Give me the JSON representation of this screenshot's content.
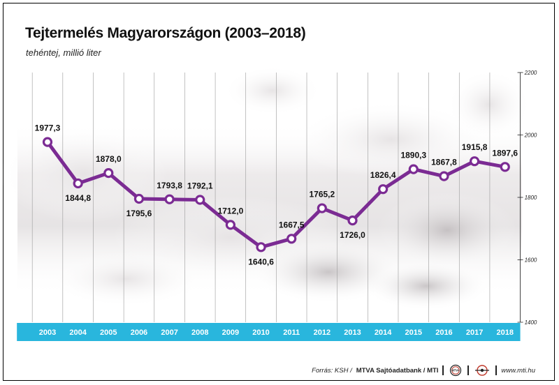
{
  "header": {
    "title": "Tejtermelés Magyarországon (2003–2018)",
    "subtitle": "tehéntej, millió liter"
  },
  "footer": {
    "source_label": "Forrás: KSH /",
    "source_bold": "MTVA Sajtóadatbank / MTI",
    "logo1_text": "MTVA",
    "website": "www.mti.hu"
  },
  "colors": {
    "line": "#7b2b93",
    "axis_band": "#29b6dd",
    "grid": "#9a9a9a"
  },
  "chart_data": {
    "type": "line",
    "title": "Tejtermelés Magyarországon (2003–2018)",
    "subtitle": "tehéntej, millió liter",
    "x": [
      "2003",
      "2004",
      "2005",
      "2006",
      "2007",
      "2008",
      "2009",
      "2010",
      "2011",
      "2012",
      "2013",
      "2014",
      "2015",
      "2016",
      "2017",
      "2018"
    ],
    "values": [
      1977.3,
      1844.8,
      1878.0,
      1795.6,
      1793.8,
      1792.1,
      1712.0,
      1640.6,
      1667.5,
      1765.2,
      1726.0,
      1826.4,
      1890.3,
      1867.8,
      1915.8,
      1897.6
    ],
    "labels": [
      "1977,3",
      "1844,8",
      "1878,0",
      "1795,6",
      "1793,8",
      "1792,1",
      "1712,0",
      "1640,6",
      "1667,5",
      "1765,2",
      "1726,0",
      "1826,4",
      "1890,3",
      "1867,8",
      "1915,8",
      "1897,6"
    ],
    "label_positions": [
      "above",
      "below",
      "above",
      "below",
      "above",
      "above",
      "above",
      "below",
      "above",
      "above",
      "below",
      "above",
      "above",
      "above",
      "above",
      "above"
    ],
    "yticks": [
      "1400",
      "1600",
      "1800",
      "2000",
      "2200"
    ],
    "ylim": [
      1400,
      2200
    ],
    "grid": "vertical",
    "yaxis_side": "right"
  }
}
